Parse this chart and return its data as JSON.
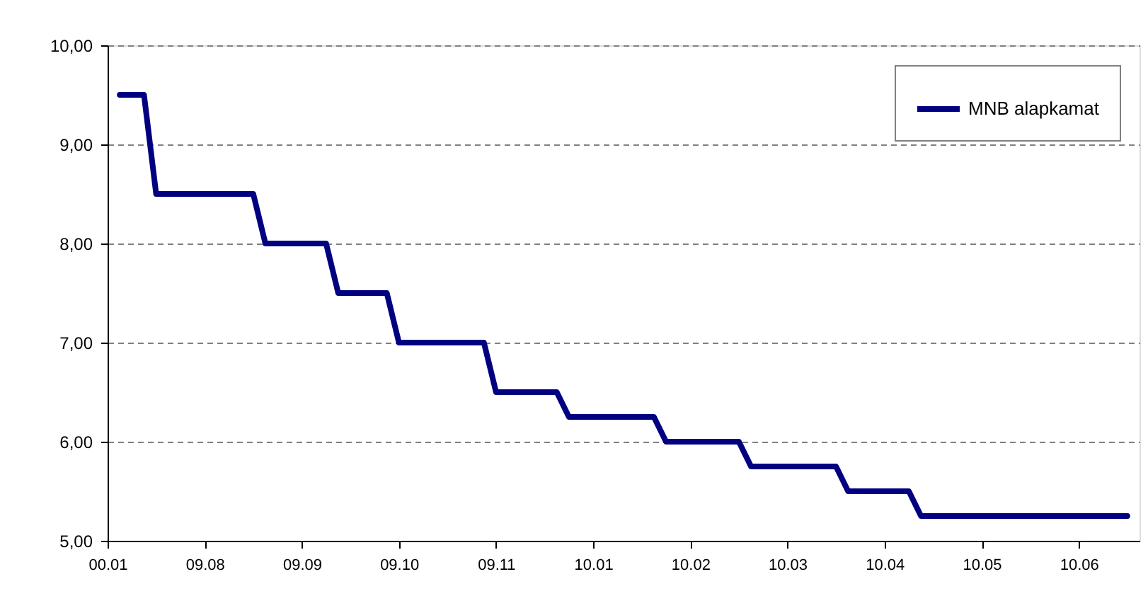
{
  "chart_data": {
    "type": "line",
    "categories": [
      "00.01",
      null,
      null,
      null,
      null,
      null,
      null,
      null,
      "09.08",
      null,
      null,
      null,
      null,
      null,
      null,
      null,
      "09.09",
      null,
      null,
      null,
      null,
      null,
      null,
      null,
      "09.10",
      null,
      null,
      null,
      null,
      null,
      null,
      null,
      "09.11",
      null,
      null,
      null,
      null,
      null,
      null,
      null,
      "10.01",
      null,
      null,
      null,
      null,
      null,
      null,
      null,
      "10.02",
      null,
      null,
      null,
      null,
      null,
      null,
      null,
      "10.03",
      null,
      null,
      null,
      null,
      null,
      null,
      null,
      "10.04",
      null,
      null,
      null,
      null,
      null,
      null,
      null,
      "10.05",
      null,
      null,
      null,
      null,
      null,
      null,
      null,
      "10.06",
      null,
      null,
      null,
      null
    ],
    "series": [
      {
        "name": "MNB alapkamat",
        "color": "#000080",
        "values": [
          null,
          9.5,
          9.5,
          9.5,
          8.5,
          8.5,
          8.5,
          8.5,
          8.5,
          8.5,
          8.5,
          8.5,
          8.5,
          8.0,
          8.0,
          8.0,
          8.0,
          8.0,
          8.0,
          7.5,
          7.5,
          7.5,
          7.5,
          7.5,
          7.0,
          7.0,
          7.0,
          7.0,
          7.0,
          7.0,
          7.0,
          7.0,
          6.5,
          6.5,
          6.5,
          6.5,
          6.5,
          6.5,
          6.25,
          6.25,
          6.25,
          6.25,
          6.25,
          6.25,
          6.25,
          6.25,
          6.0,
          6.0,
          6.0,
          6.0,
          6.0,
          6.0,
          6.0,
          5.75,
          5.75,
          5.75,
          5.75,
          5.75,
          5.75,
          5.75,
          5.75,
          5.5,
          5.5,
          5.5,
          5.5,
          5.5,
          5.5,
          5.25,
          5.25,
          5.25,
          5.25,
          5.25,
          5.25,
          5.25,
          5.25,
          5.25,
          5.25,
          5.25,
          5.25,
          5.25,
          5.25,
          5.25,
          5.25,
          5.25,
          5.25
        ]
      }
    ],
    "ylim": [
      5,
      10
    ],
    "yticks": [
      {
        "value": 5,
        "label": "5,00"
      },
      {
        "value": 6,
        "label": "6,00"
      },
      {
        "value": 7,
        "label": "7,00"
      },
      {
        "value": 8,
        "label": "8,00"
      },
      {
        "value": 9,
        "label": "9,00"
      },
      {
        "value": 10,
        "label": "10,00"
      }
    ],
    "grid": "y",
    "legend": "top right",
    "marker": "none",
    "line_style": "solid"
  }
}
